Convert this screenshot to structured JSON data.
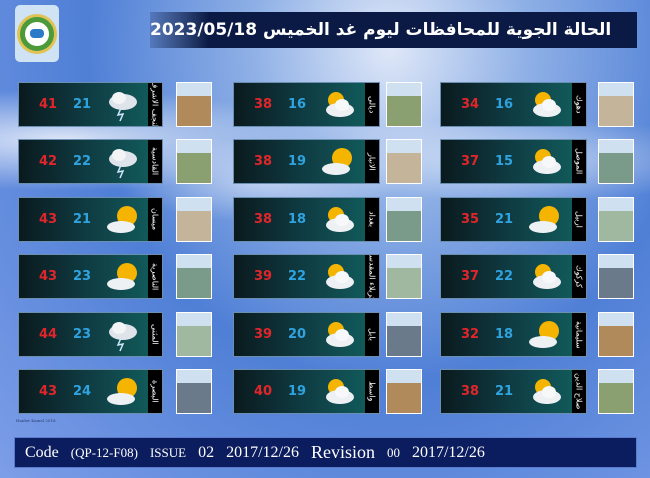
{
  "header": {
    "title": "الحالة الجوية للمحافظات ليوم غد الخميس",
    "date": "2023/05/18"
  },
  "colors": {
    "max_temp": "#e0262a",
    "min_temp": "#2fa3e0",
    "header_bg": "#0b1a45",
    "footer_bg": "#0b1d5e"
  },
  "columns": [
    [
      {
        "name": "النجف الاشرف",
        "max": "41",
        "min": "21",
        "icon": "thunderstorm-icon"
      },
      {
        "name": "القادسية",
        "max": "42",
        "min": "22",
        "icon": "thunderstorm-icon"
      },
      {
        "name": "ميسان",
        "max": "43",
        "min": "21",
        "icon": "sun-cloud-icon"
      },
      {
        "name": "الناصرية",
        "max": "43",
        "min": "23",
        "icon": "sun-cloud-icon"
      },
      {
        "name": "المثنى",
        "max": "44",
        "min": "23",
        "icon": "thunderstorm-icon"
      },
      {
        "name": "البصرة",
        "max": "43",
        "min": "24",
        "icon": "sun-cloud-icon"
      }
    ],
    [
      {
        "name": "ديالى",
        "max": "38",
        "min": "16",
        "icon": "partly-cloudy-icon"
      },
      {
        "name": "الانبار",
        "max": "38",
        "min": "19",
        "icon": "sun-cloud-icon"
      },
      {
        "name": "بغداد",
        "max": "38",
        "min": "18",
        "icon": "partly-cloudy-icon"
      },
      {
        "name": "كربلاء المقدسة",
        "max": "39",
        "min": "22",
        "icon": "partly-cloudy-icon"
      },
      {
        "name": "بابل",
        "max": "39",
        "min": "20",
        "icon": "partly-cloudy-icon"
      },
      {
        "name": "واسط",
        "max": "40",
        "min": "19",
        "icon": "partly-cloudy-icon"
      }
    ],
    [
      {
        "name": "دهوك",
        "max": "34",
        "min": "16",
        "icon": "partly-cloudy-icon"
      },
      {
        "name": "الموصل",
        "max": "37",
        "min": "15",
        "icon": "partly-cloudy-icon"
      },
      {
        "name": "اربيل",
        "max": "35",
        "min": "21",
        "icon": "sun-cloud-icon"
      },
      {
        "name": "كركوك",
        "max": "37",
        "min": "22",
        "icon": "partly-cloudy-icon"
      },
      {
        "name": "سليمانية",
        "max": "32",
        "min": "18",
        "icon": "sun-cloud-icon"
      },
      {
        "name": "صلاح الدين",
        "max": "38",
        "min": "21",
        "icon": "partly-cloudy-icon"
      }
    ]
  ],
  "credit": "Haider Kamel 2018",
  "footer": {
    "code_label": "Code",
    "code": "(QP-12-F08)",
    "issue_label": "ISSUE",
    "issue": "02",
    "issue_date": "2017/12/26",
    "revision_label": "Revision",
    "revision": "00",
    "revision_date": "2017/12/26"
  }
}
